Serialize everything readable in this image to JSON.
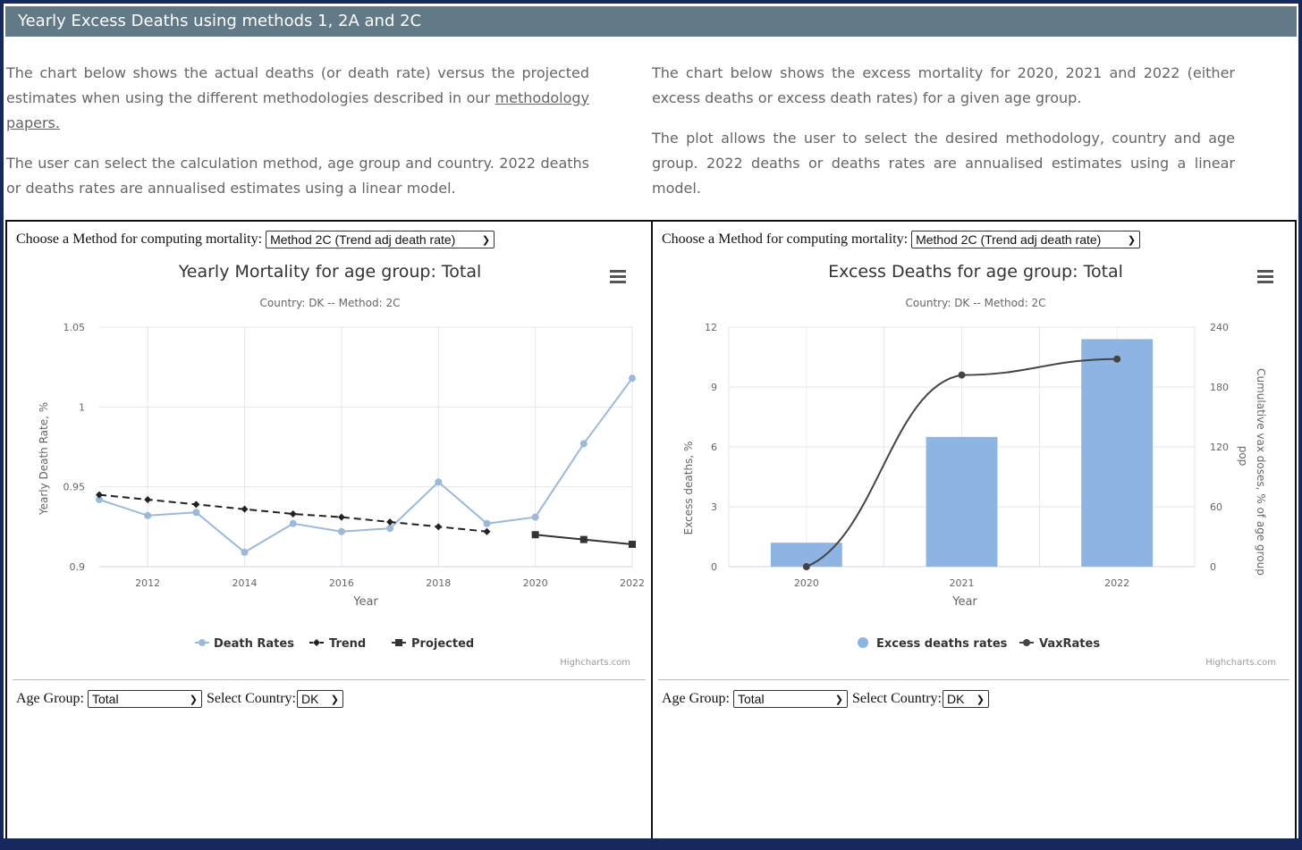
{
  "header": {
    "title": "Yearly Excess Deaths using methods 1, 2A and 2C"
  },
  "intro_left": {
    "p1_text": "The chart below shows the actual deaths (or death rate) versus the projected estimates when using the different methodologies described in our",
    "p1_link": "methodology papers.",
    "p2": "The user can select the calculation method, age group and country. 2022 deaths or deaths rates are annualised estimates using a linear model."
  },
  "intro_right": {
    "p1": "The chart below shows the excess mortality for 2020, 2021 and 2022 (either excess deaths or excess death rates) for a given age group.",
    "p2": "The plot allows the user to select the desired methodology, country and age group. 2022 deaths or deaths rates are annualised estimates using a linear model."
  },
  "controls": {
    "method_label": "Choose a Method for computing mortality:",
    "method_value": "Method 2C (Trend adj death rate)",
    "age_label": "Age Group:",
    "age_value": "Total",
    "country_label": "Select Country:",
    "country_value": "DK"
  },
  "credits": "Highcharts.com",
  "colors": {
    "header_bg": "#627a87",
    "death_rates": "#9cb9d8",
    "trend": "#222222",
    "projected": "#333333",
    "excess_bars": "#8db4e2",
    "vax_line": "#444444"
  },
  "icons": {
    "menu": "hamburger-menu-icon"
  },
  "chart_data": [
    {
      "type": "line",
      "title": "Yearly Mortality for age group: Total",
      "subtitle": "Country: DK -- Method: 2C",
      "xlabel": "Year",
      "ylabel": "Yearly Death Rate, %",
      "xlim": [
        2011,
        2022
      ],
      "ylim": [
        0.9,
        1.05
      ],
      "xticks": [
        2012,
        2014,
        2016,
        2018,
        2020,
        2022
      ],
      "yticks": [
        0.9,
        0.95,
        1,
        1.05
      ],
      "ytick_labels": [
        "0.9",
        "0.95",
        "1",
        "1.05"
      ],
      "grid": true,
      "legend_position": "bottom",
      "series": [
        {
          "name": "Death Rates",
          "x": [
            2011,
            2012,
            2013,
            2014,
            2015,
            2016,
            2017,
            2018,
            2019,
            2020,
            2021,
            2022
          ],
          "values": [
            0.942,
            0.932,
            0.934,
            0.909,
            0.927,
            0.922,
            0.924,
            0.953,
            0.927,
            0.931,
            0.977,
            1.018
          ]
        },
        {
          "name": "Trend",
          "x": [
            2011,
            2012,
            2013,
            2014,
            2015,
            2016,
            2017,
            2018,
            2019
          ],
          "values": [
            0.945,
            0.942,
            0.939,
            0.936,
            0.933,
            0.931,
            0.928,
            0.925,
            0.922
          ]
        },
        {
          "name": "Projected",
          "x": [
            2020,
            2021,
            2022
          ],
          "values": [
            0.92,
            0.917,
            0.914
          ]
        }
      ]
    },
    {
      "type": "bar",
      "title": "Excess Deaths for age group: Total",
      "subtitle": "Country: DK -- Method: 2C",
      "xlabel": "Year",
      "ylabel": "Excess deaths, %",
      "y2label": "Cumulative vax doses, % of age group pop",
      "categories": [
        "2020",
        "2021",
        "2022"
      ],
      "ylim": [
        0,
        12
      ],
      "y2lim": [
        0,
        240
      ],
      "yticks": [
        0,
        3,
        6,
        9,
        12
      ],
      "y2ticks": [
        0,
        60,
        120,
        180,
        240
      ],
      "grid": true,
      "legend_position": "bottom",
      "series": [
        {
          "name": "Excess deaths rates",
          "type": "bar",
          "axis": "left",
          "values": [
            1.2,
            6.5,
            11.4
          ]
        },
        {
          "name": "VaxRates",
          "type": "line",
          "axis": "right",
          "values": [
            0,
            192,
            208
          ]
        }
      ]
    }
  ]
}
